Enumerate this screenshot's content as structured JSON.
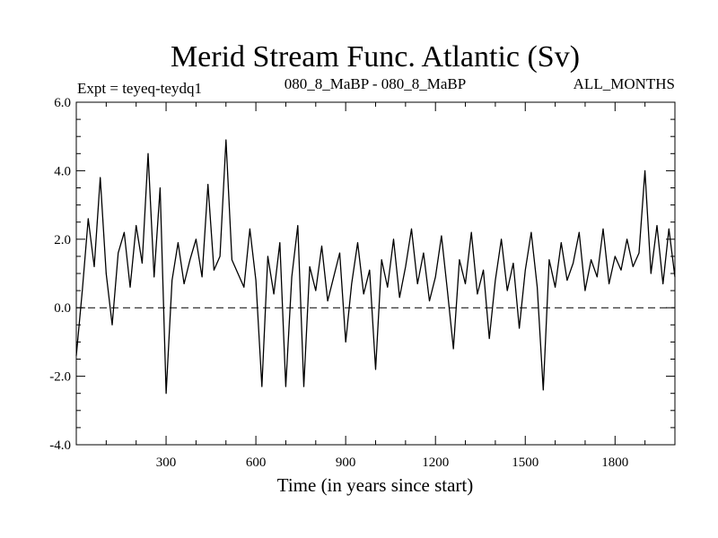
{
  "chart_data": {
    "type": "line",
    "title": "Merid Stream Func. Atlantic (Sv)",
    "subtitle_left": "Expt = teyeq-teydq1",
    "subtitle_center": "080_8_MaBP - 080_8_MaBP",
    "subtitle_right": "ALL_MONTHS",
    "xlabel": "Time (in years since start)",
    "ylabel": "",
    "xlim": [
      0,
      2000
    ],
    "ylim": [
      -4.0,
      6.0
    ],
    "xticks": [
      300,
      600,
      900,
      1200,
      1500,
      1800
    ],
    "yticks": [
      "-4.0",
      "-2.0",
      "0.0",
      "2.0",
      "4.0",
      "6.0"
    ],
    "grid": false,
    "zero_line": "dashed",
    "series": [
      {
        "x": [
          0,
          20,
          40,
          60,
          80,
          100,
          120,
          140,
          160,
          180,
          200,
          220,
          240,
          260,
          280,
          300,
          320,
          340,
          360,
          380,
          400,
          420,
          440,
          460,
          480,
          500,
          520,
          540,
          560,
          580,
          600,
          620,
          640,
          660,
          680,
          700,
          720,
          740,
          760,
          780,
          800,
          820,
          840,
          860,
          880,
          900,
          920,
          940,
          960,
          980,
          1000,
          1020,
          1040,
          1060,
          1080,
          1100,
          1120,
          1140,
          1160,
          1180,
          1200,
          1220,
          1240,
          1260,
          1280,
          1300,
          1320,
          1340,
          1360,
          1380,
          1400,
          1420,
          1440,
          1460,
          1480,
          1500,
          1520,
          1540,
          1560,
          1580,
          1600,
          1620,
          1640,
          1660,
          1680,
          1700,
          1720,
          1740,
          1760,
          1780,
          1800,
          1820,
          1840,
          1860,
          1880,
          1900,
          1920,
          1940,
          1960,
          1980,
          2000
        ],
        "y": [
          -1.4,
          0.5,
          2.6,
          1.2,
          3.8,
          1.0,
          -0.5,
          1.6,
          2.2,
          0.6,
          2.4,
          1.3,
          4.5,
          0.9,
          3.5,
          -2.5,
          0.8,
          1.9,
          0.7,
          1.4,
          2.0,
          0.9,
          3.6,
          1.1,
          1.5,
          4.9,
          1.4,
          1.0,
          0.6,
          2.3,
          0.8,
          -2.3,
          1.5,
          0.4,
          1.9,
          -2.3,
          0.9,
          2.4,
          -2.3,
          1.2,
          0.5,
          1.8,
          0.2,
          0.9,
          1.6,
          -1.0,
          0.7,
          1.9,
          0.4,
          1.1,
          -1.8,
          1.4,
          0.6,
          2.0,
          0.3,
          1.2,
          2.3,
          0.7,
          1.6,
          0.2,
          0.9,
          2.1,
          0.5,
          -1.2,
          1.4,
          0.7,
          2.2,
          0.4,
          1.1,
          -0.9,
          0.8,
          2.0,
          0.5,
          1.3,
          -0.6,
          1.1,
          2.2,
          0.6,
          -2.4,
          1.4,
          0.6,
          1.9,
          0.8,
          1.3,
          2.2,
          0.5,
          1.4,
          0.9,
          2.3,
          0.7,
          1.5,
          1.1,
          2.0,
          1.2,
          1.6,
          4.0,
          1.0,
          2.4,
          0.7,
          2.3,
          0.9
        ]
      }
    ]
  }
}
